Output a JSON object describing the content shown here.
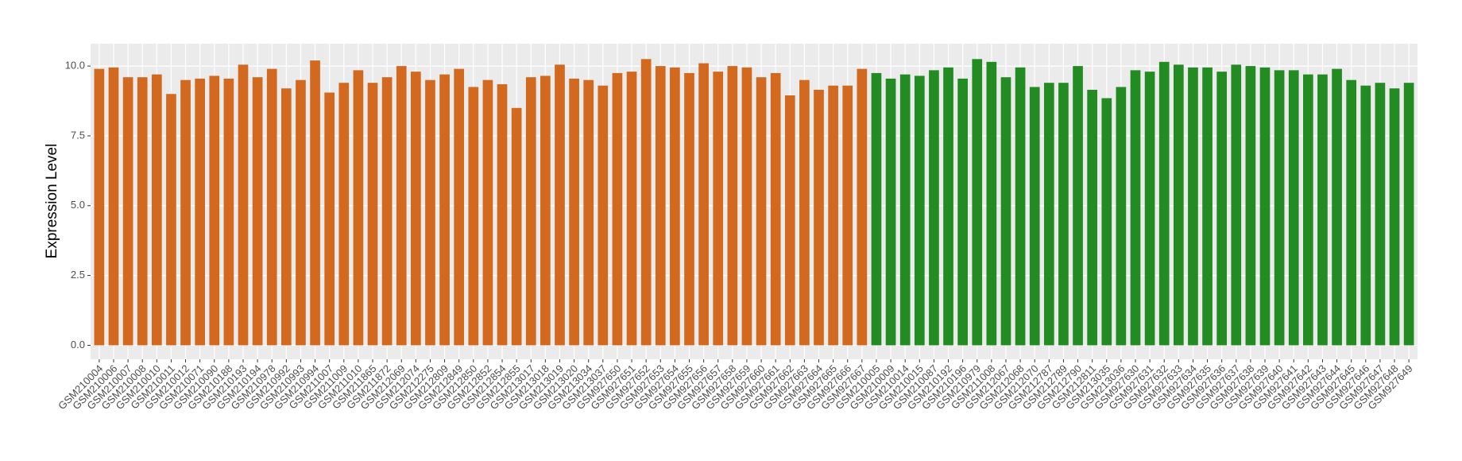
{
  "chart_data": {
    "type": "bar",
    "y_label": "Expression Level",
    "categories": [
      "GSM210004",
      "GSM210006",
      "GSM210007",
      "GSM210008",
      "GSM210010",
      "GSM210011",
      "GSM210012",
      "GSM210071",
      "GSM210090",
      "GSM210188",
      "GSM210193",
      "GSM210194",
      "GSM210978",
      "GSM210992",
      "GSM210993",
      "GSM210994",
      "GSM211007",
      "GSM211009",
      "GSM211010",
      "GSM211865",
      "GSM211872",
      "GSM212069",
      "GSM212074",
      "GSM212275",
      "GSM212809",
      "GSM212849",
      "GSM212850",
      "GSM212852",
      "GSM212854",
      "GSM212855",
      "GSM213017",
      "GSM213018",
      "GSM213019",
      "GSM213020",
      "GSM213034",
      "GSM213037",
      "GSM927650",
      "GSM927651",
      "GSM927652",
      "GSM927653",
      "GSM927654",
      "GSM927655",
      "GSM927656",
      "GSM927657",
      "GSM927658",
      "GSM927659",
      "GSM927660",
      "GSM927661",
      "GSM927662",
      "GSM927663",
      "GSM927664",
      "GSM927665",
      "GSM927666",
      "GSM927667",
      "GSM210005",
      "GSM210009",
      "GSM210014",
      "GSM210015",
      "GSM210087",
      "GSM210192",
      "GSM210196",
      "GSM210979",
      "GSM211008",
      "GSM212067",
      "GSM212068",
      "GSM212070",
      "GSM212787",
      "GSM212789",
      "GSM212790",
      "GSM212811",
      "GSM213035",
      "GSM213036",
      "GSM927630",
      "GSM927631",
      "GSM927632",
      "GSM927633",
      "GSM927634",
      "GSM927635",
      "GSM927636",
      "GSM927637",
      "GSM927638",
      "GSM927639",
      "GSM927640",
      "GSM927641",
      "GSM927642",
      "GSM927643",
      "GSM927644",
      "GSM927645",
      "GSM927646",
      "GSM927647",
      "GSM927648",
      "GSM927649"
    ],
    "values": [
      9.9,
      9.95,
      9.6,
      9.6,
      9.7,
      9.0,
      9.5,
      9.55,
      9.65,
      9.55,
      10.05,
      9.6,
      9.9,
      9.2,
      9.5,
      10.2,
      9.05,
      9.4,
      9.85,
      9.4,
      9.6,
      10.0,
      9.8,
      9.5,
      9.7,
      9.9,
      9.25,
      9.5,
      9.35,
      8.5,
      9.6,
      9.65,
      10.05,
      9.55,
      9.5,
      9.3,
      9.75,
      9.8,
      10.25,
      10.0,
      9.95,
      9.75,
      10.1,
      9.8,
      10.0,
      9.95,
      9.6,
      9.75,
      8.95,
      9.5,
      9.15,
      9.3,
      9.3,
      9.9,
      9.75,
      9.55,
      9.7,
      9.65,
      9.85,
      9.95,
      9.55,
      10.25,
      10.15,
      9.6,
      9.95,
      9.25,
      9.4,
      9.4,
      10.0,
      9.15,
      8.85,
      9.25,
      9.85,
      9.8,
      10.15,
      10.05,
      9.95,
      9.95,
      9.8,
      10.05,
      10.0,
      9.95,
      9.85,
      9.85,
      9.7,
      9.7,
      9.9,
      9.5,
      9.3,
      9.4,
      9.2,
      9.4
    ],
    "colors": [
      "#d2691e",
      "#d2691e",
      "#d2691e",
      "#d2691e",
      "#d2691e",
      "#d2691e",
      "#d2691e",
      "#d2691e",
      "#d2691e",
      "#d2691e",
      "#d2691e",
      "#d2691e",
      "#d2691e",
      "#d2691e",
      "#d2691e",
      "#d2691e",
      "#d2691e",
      "#d2691e",
      "#d2691e",
      "#d2691e",
      "#d2691e",
      "#d2691e",
      "#d2691e",
      "#d2691e",
      "#d2691e",
      "#d2691e",
      "#d2691e",
      "#d2691e",
      "#d2691e",
      "#d2691e",
      "#d2691e",
      "#d2691e",
      "#d2691e",
      "#d2691e",
      "#d2691e",
      "#d2691e",
      "#d2691e",
      "#d2691e",
      "#d2691e",
      "#d2691e",
      "#d2691e",
      "#d2691e",
      "#d2691e",
      "#d2691e",
      "#d2691e",
      "#d2691e",
      "#d2691e",
      "#d2691e",
      "#d2691e",
      "#d2691e",
      "#d2691e",
      "#d2691e",
      "#d2691e",
      "#d2691e",
      "#228b22",
      "#228b22",
      "#228b22",
      "#228b22",
      "#228b22",
      "#228b22",
      "#228b22",
      "#228b22",
      "#228b22",
      "#228b22",
      "#228b22",
      "#228b22",
      "#228b22",
      "#228b22",
      "#228b22",
      "#228b22",
      "#228b22",
      "#228b22",
      "#228b22",
      "#228b22",
      "#228b22",
      "#228b22",
      "#228b22",
      "#228b22",
      "#228b22",
      "#228b22",
      "#228b22",
      "#228b22",
      "#228b22",
      "#228b22",
      "#228b22",
      "#228b22",
      "#228b22",
      "#228b22",
      "#228b22",
      "#228b22",
      "#228b22",
      "#228b22"
    ],
    "ylim": [
      -0.5,
      10.8
    ],
    "yticks": [
      {
        "value": 0,
        "label": "0.0"
      },
      {
        "value": 2.5,
        "label": "2.5"
      },
      {
        "value": 5,
        "label": "5.0"
      },
      {
        "value": 7.5,
        "label": "7.5"
      },
      {
        "value": 10,
        "label": "10.0"
      }
    ],
    "grid": true
  }
}
